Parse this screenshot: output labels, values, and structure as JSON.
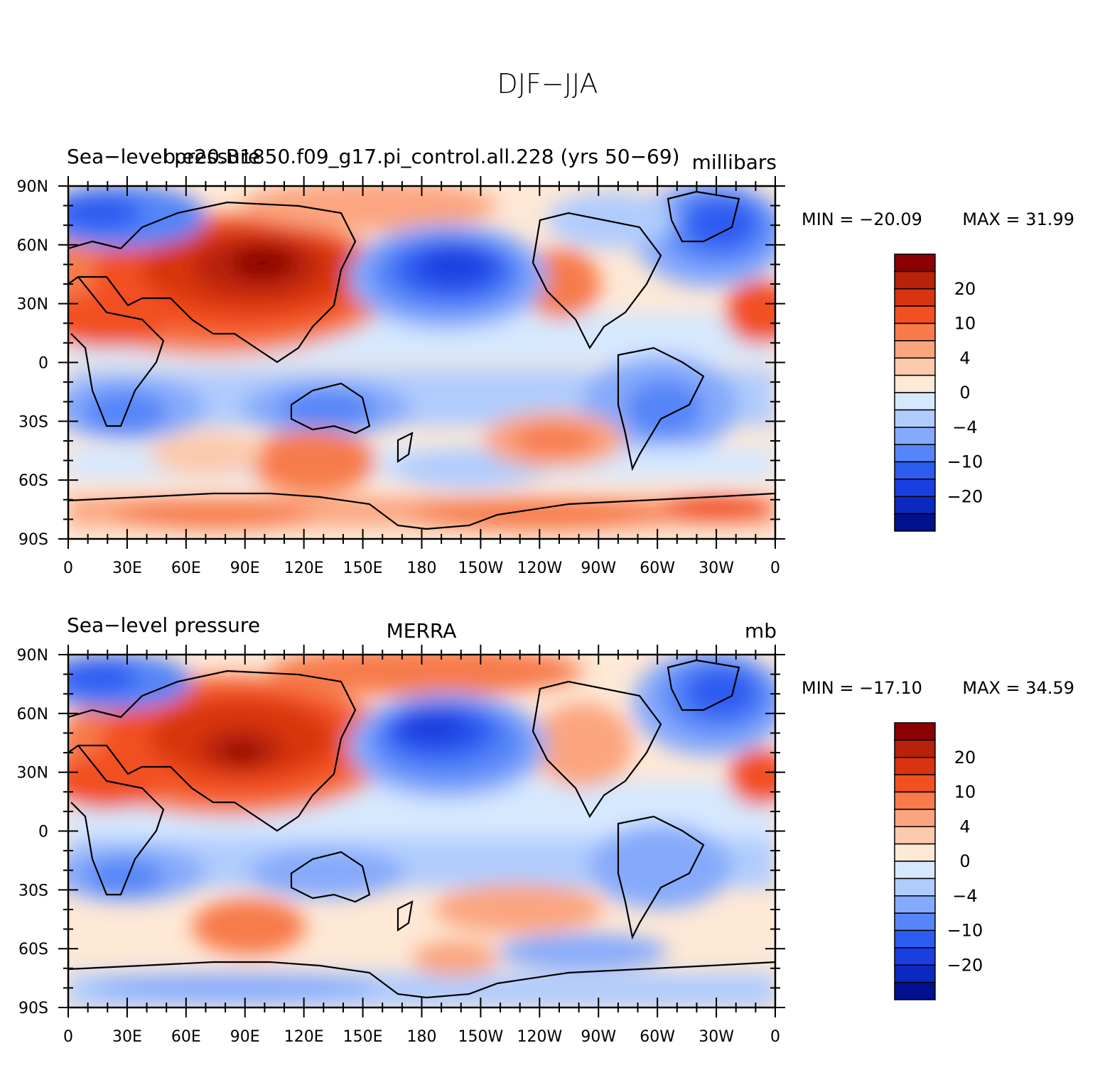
{
  "figure": {
    "title": "DJF−JJA"
  },
  "x_ticks": [
    "0",
    "30E",
    "60E",
    "90E",
    "120E",
    "150E",
    "180",
    "150W",
    "120W",
    "90W",
    "60W",
    "30W",
    "0"
  ],
  "y_ticks": [
    "90N",
    "60N",
    "30N",
    "0",
    "30S",
    "60S",
    "90S"
  ],
  "colorbar": {
    "labels": [
      "20",
      "10",
      "4",
      "0",
      "−4",
      "−10",
      "−20"
    ],
    "colors": [
      "#8b0000",
      "#b8210a",
      "#d8340f",
      "#f25020",
      "#f77b4b",
      "#fba57f",
      "#fcc9ac",
      "#fee8d6",
      "#d6e8fe",
      "#b0ccfd",
      "#86aafb",
      "#5585f8",
      "#2d5cf1",
      "#1a3fe0",
      "#0b29c0",
      "#00108f"
    ]
  },
  "panels": [
    {
      "left_title": "Sea−level pressure",
      "center_title": "b.e20.B1850.f09_g17.pi_control.all.228 (yrs 50−69)",
      "right_title": "millibars",
      "min_label": "MIN = −20.09",
      "max_label": "MAX =   31.99"
    },
    {
      "left_title": "Sea−level pressure",
      "center_title": "MERRA",
      "right_title": "mb",
      "min_label": "MIN = −17.10",
      "max_label": "MAX =   34.59"
    }
  ],
  "chart_data": {
    "type": "heatmap",
    "variable": "Sea-level pressure difference DJF-JJA",
    "x_range": [
      0,
      360
    ],
    "y_range": [
      -90,
      90
    ],
    "contour_levels": [
      -24,
      -20,
      -16,
      -12,
      -10,
      -8,
      -4,
      -2,
      0,
      2,
      4,
      8,
      10,
      12,
      16,
      20,
      24
    ],
    "panels": [
      {
        "source": "b.e20.B1850.f09_g17.pi_control.all.228 (yrs 50-69)",
        "units": "millibars",
        "min": -20.09,
        "max": 31.99
      },
      {
        "source": "MERRA",
        "units": "mb",
        "min": -17.1,
        "max": 34.59
      }
    ]
  }
}
